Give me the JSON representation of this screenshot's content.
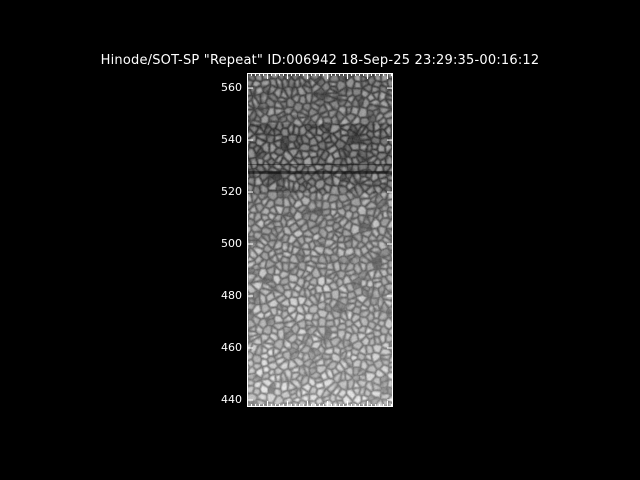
{
  "title": "Hinode/SOT-SP \"Repeat\" ID:006942 18-Sep-25 23:29:35-00:16:12",
  "image": {
    "description_type": "solar-granulation-intensity-map",
    "colormap": "grayscale"
  },
  "y_axis": {
    "range": [
      437.3,
      565.8
    ],
    "ticks": [
      "440",
      "460",
      "480",
      "500",
      "520",
      "540",
      "560"
    ]
  },
  "colors": {
    "background": "#000000",
    "axes": "#ffffff"
  }
}
